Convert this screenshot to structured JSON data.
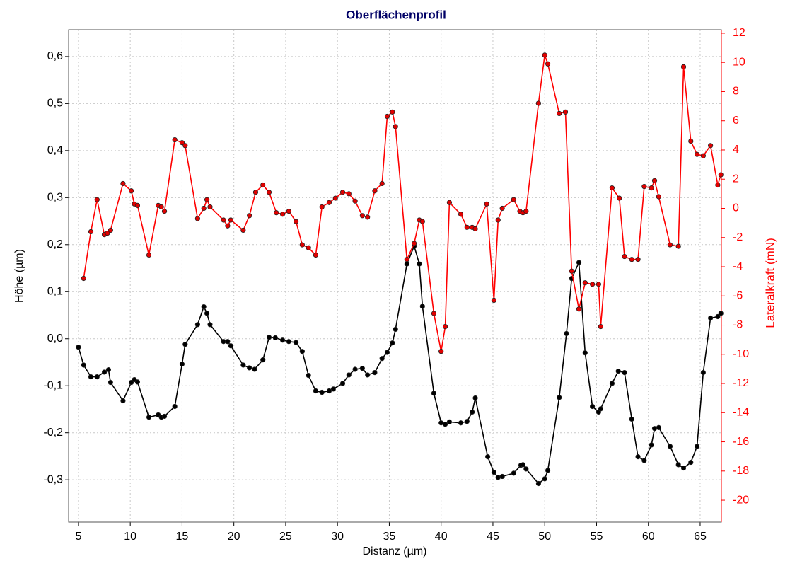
{
  "chart_data": {
    "type": "line",
    "title": "Oberflächenprofil",
    "xlabel": "Distanz (µm)",
    "ylabel": "Höhe (µm)",
    "y2label": "Lateralkraft (mN)",
    "xlim": [
      4.05,
      67.05
    ],
    "xticks": [
      5,
      10,
      15,
      20,
      25,
      30,
      35,
      40,
      45,
      50,
      55,
      60,
      65
    ],
    "ylim": [
      -0.39,
      0.657
    ],
    "yticks": [
      {
        "value": -0.3,
        "label": "-0,3"
      },
      {
        "value": -0.2,
        "label": "-0,2"
      },
      {
        "value": -0.1,
        "label": "-0,1"
      },
      {
        "value": 0,
        "label": "0,0"
      },
      {
        "value": 0.1,
        "label": "0,1"
      },
      {
        "value": 0.2,
        "label": "0,2"
      },
      {
        "value": 0.3,
        "label": "0,3"
      },
      {
        "value": 0.4,
        "label": "0,4"
      },
      {
        "value": 0.5,
        "label": "0,5"
      },
      {
        "value": 0.6,
        "label": "0,6"
      }
    ],
    "y2lim": [
      -21.5,
      12.24
    ],
    "y2ticks": [
      -20,
      -18,
      -16,
      -14,
      -12,
      -10,
      -8,
      -6,
      -4,
      -2,
      0,
      2,
      4,
      6,
      8,
      10,
      12
    ],
    "grid": true,
    "y2color": "#ff0000",
    "series": [
      {
        "color": "#000000",
        "marker_fill": "#000000",
        "axis": "y",
        "x": [
          5.0,
          5.5,
          6.2,
          6.8,
          7.5,
          7.9,
          8.1,
          9.3,
          10.1,
          10.4,
          10.7,
          11.8,
          12.7,
          13.0,
          13.3,
          14.3,
          15.0,
          15.3,
          16.5,
          17.1,
          17.4,
          17.7,
          19.0,
          19.4,
          19.7,
          20.9,
          21.5,
          22.0,
          22.8,
          23.4,
          24.0,
          24.7,
          25.3,
          26.0,
          26.6,
          27.2,
          27.9,
          28.5,
          29.2,
          29.6,
          30.5,
          31.1,
          31.7,
          32.4,
          32.9,
          33.6,
          34.3,
          34.8,
          35.3,
          35.6,
          36.7,
          37.4,
          37.9,
          38.2,
          39.3,
          40.0,
          40.4,
          40.8,
          41.9,
          42.5,
          43.0,
          43.3,
          44.5,
          45.1,
          45.5,
          45.9,
          47.0,
          47.7,
          47.9,
          48.2,
          49.4,
          50.0,
          50.3,
          51.4,
          52.1,
          52.6,
          53.3,
          53.9,
          54.6,
          55.2,
          55.4,
          56.5,
          57.1,
          57.7,
          58.4,
          59.0,
          59.6,
          60.3,
          60.6,
          61.0,
          62.1,
          62.9,
          63.4,
          64.1,
          64.7,
          65.3,
          66.0,
          66.7,
          67.0
        ],
        "values": [
          -0.018,
          -0.056,
          -0.081,
          -0.081,
          -0.071,
          -0.066,
          -0.093,
          -0.132,
          -0.093,
          -0.087,
          -0.092,
          -0.167,
          -0.162,
          -0.167,
          -0.165,
          -0.144,
          -0.054,
          -0.012,
          0.03,
          0.068,
          0.054,
          0.03,
          -0.006,
          -0.006,
          -0.015,
          -0.056,
          -0.062,
          -0.065,
          -0.045,
          0.003,
          0.002,
          -0.003,
          -0.006,
          -0.008,
          -0.027,
          -0.078,
          -0.111,
          -0.114,
          -0.111,
          -0.107,
          -0.095,
          -0.077,
          -0.065,
          -0.063,
          -0.077,
          -0.072,
          -0.042,
          -0.029,
          -0.009,
          0.02,
          0.159,
          0.197,
          0.159,
          0.069,
          -0.116,
          -0.179,
          -0.182,
          -0.177,
          -0.179,
          -0.176,
          -0.156,
          -0.126,
          -0.251,
          -0.284,
          -0.295,
          -0.293,
          -0.286,
          -0.269,
          -0.268,
          -0.277,
          -0.308,
          -0.298,
          -0.28,
          -0.125,
          0.011,
          0.128,
          0.162,
          -0.03,
          -0.144,
          -0.156,
          -0.149,
          -0.095,
          -0.069,
          -0.072,
          -0.171,
          -0.251,
          -0.259,
          -0.226,
          -0.191,
          -0.189,
          -0.229,
          -0.268,
          -0.275,
          -0.263,
          -0.229,
          -0.072,
          0.044,
          0.047,
          0.054
        ]
      },
      {
        "color": "#ff0000",
        "marker_fill": "#e00000",
        "axis": "y2",
        "x": [
          5.5,
          6.2,
          6.8,
          7.5,
          7.8,
          8.1,
          9.3,
          10.1,
          10.4,
          10.7,
          11.8,
          12.7,
          13.0,
          13.3,
          14.3,
          15.0,
          15.3,
          16.5,
          17.1,
          17.4,
          17.7,
          19.0,
          19.4,
          19.7,
          20.9,
          21.5,
          22.1,
          22.8,
          23.4,
          24.1,
          24.7,
          25.3,
          26.0,
          26.6,
          27.2,
          27.9,
          28.5,
          29.2,
          29.8,
          30.5,
          31.1,
          31.7,
          32.4,
          32.9,
          33.6,
          34.3,
          34.8,
          35.3,
          35.6,
          36.7,
          37.4,
          37.9,
          38.2,
          39.3,
          40.0,
          40.4,
          40.8,
          41.9,
          42.5,
          43.0,
          43.3,
          44.4,
          45.1,
          45.5,
          45.9,
          47.0,
          47.6,
          47.9,
          48.2,
          49.4,
          50.0,
          50.3,
          51.4,
          52.0,
          52.6,
          53.3,
          53.9,
          54.6,
          55.2,
          55.4,
          56.5,
          57.2,
          57.7,
          58.4,
          59.0,
          59.6,
          60.3,
          60.6,
          61.0,
          62.1,
          62.9,
          63.4,
          64.1,
          64.7,
          65.3,
          66.0,
          66.7,
          67.0
        ],
        "values": [
          -4.8,
          -1.6,
          0.6,
          -1.8,
          -1.7,
          -1.5,
          1.7,
          1.2,
          0.3,
          0.2,
          -3.2,
          0.2,
          0.1,
          -0.2,
          4.7,
          4.5,
          4.3,
          -0.7,
          0.0,
          0.6,
          0.1,
          -0.8,
          -1.2,
          -0.8,
          -1.5,
          -0.5,
          1.1,
          1.6,
          1.1,
          -0.3,
          -0.4,
          -0.2,
          -0.9,
          -2.5,
          -2.7,
          -3.2,
          0.1,
          0.4,
          0.7,
          1.1,
          1.0,
          0.5,
          -0.5,
          -0.6,
          1.2,
          1.7,
          6.3,
          6.6,
          5.6,
          -3.5,
          -2.4,
          -0.8,
          -0.9,
          -7.2,
          -9.8,
          -8.1,
          0.4,
          -0.4,
          -1.3,
          -1.3,
          -1.4,
          0.3,
          -6.3,
          -0.8,
          0.0,
          0.6,
          -0.2,
          -0.3,
          -0.2,
          7.2,
          10.5,
          9.9,
          6.5,
          6.6,
          -4.3,
          -6.9,
          -5.1,
          -5.2,
          -5.2,
          -8.1,
          1.4,
          0.7,
          -3.3,
          -3.5,
          -3.5,
          1.5,
          1.4,
          1.9,
          0.8,
          -2.5,
          -2.6,
          9.7,
          4.6,
          3.7,
          3.6,
          4.3,
          1.6,
          2.3
        ]
      }
    ]
  }
}
